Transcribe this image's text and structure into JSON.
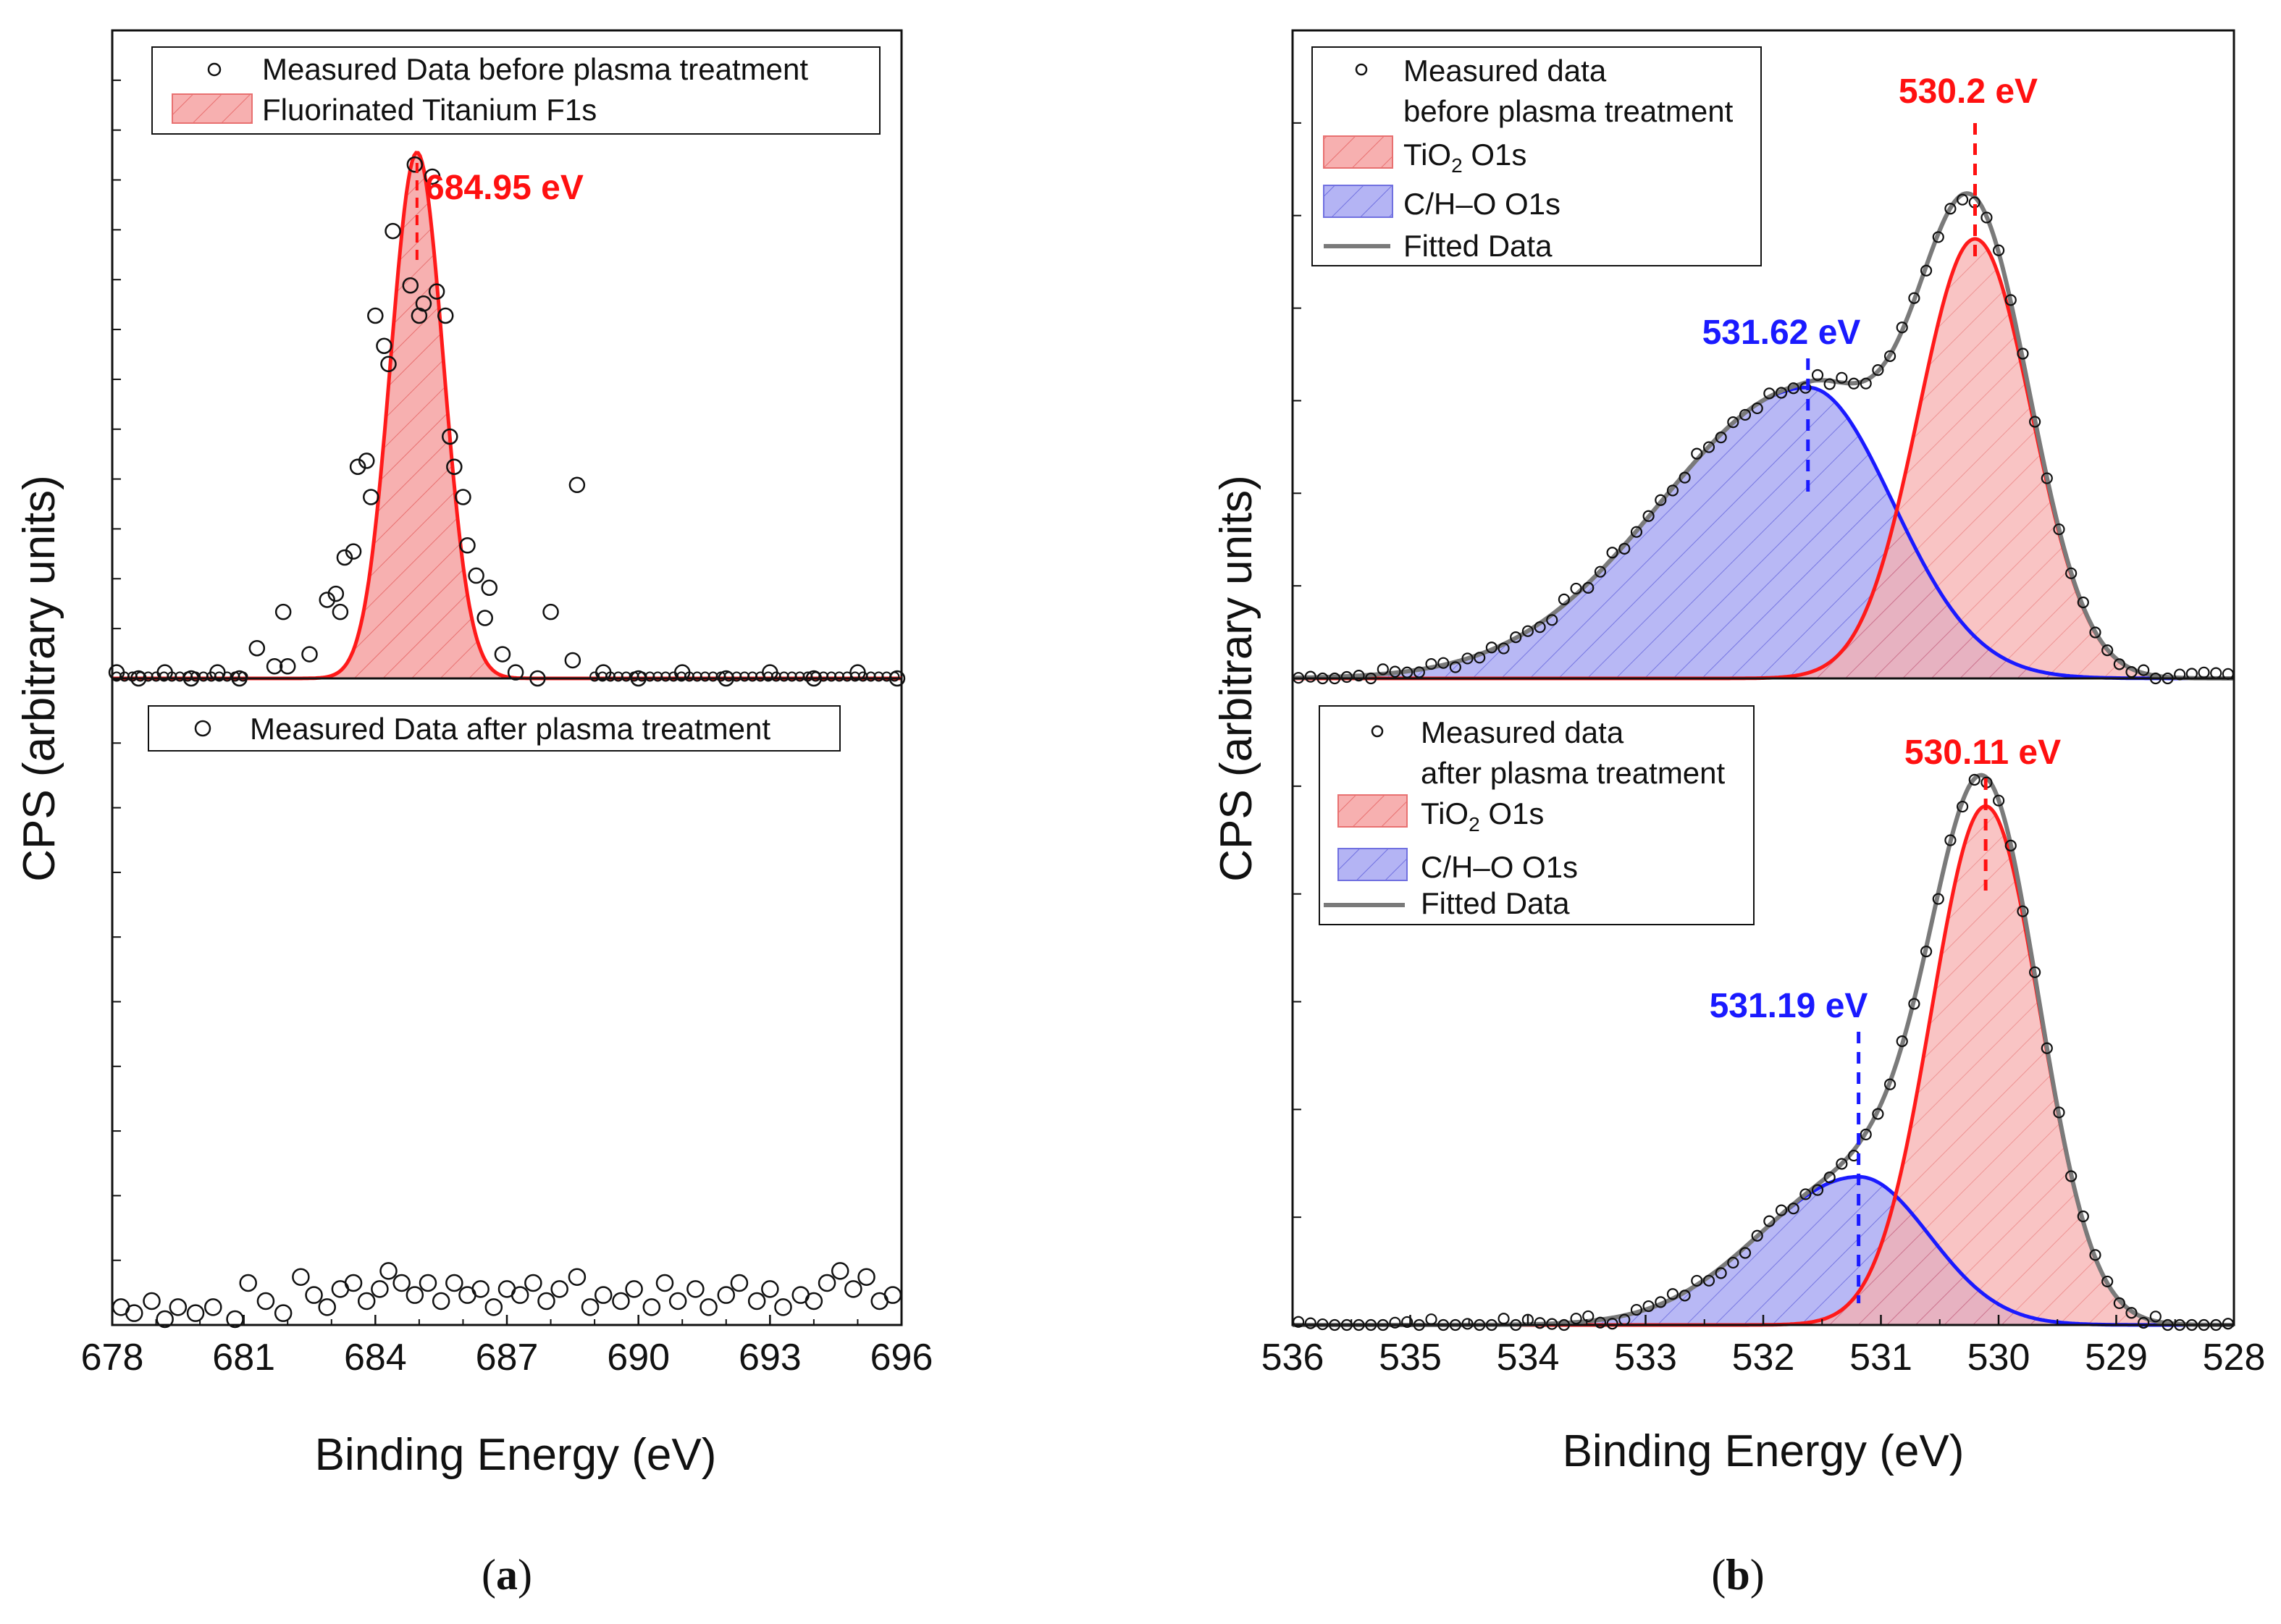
{
  "colors": {
    "red": "#ff1a1a",
    "blue": "#1a1aff",
    "gray": "#7a7a7a",
    "red_fill": "#f7b0b0",
    "blue_fill": "#b4b4f4"
  },
  "chart_data": [
    {
      "id": "a",
      "type": "scatter",
      "sublabel": {
        "open": "(",
        "letter": "a",
        "close": ")"
      },
      "xlabel": "Binding Energy (eV)",
      "ylabel": "CPS (arbitrary units)",
      "xlim": [
        678,
        696
      ],
      "xticks": [
        "678",
        "681",
        "684",
        "687",
        "690",
        "693",
        "696"
      ],
      "panels": [
        {
          "position": "top",
          "legend": [
            "Measured Data before plasma treatment",
            "Fluorinated Titanium  F1s"
          ],
          "peak": {
            "center": 684.95,
            "label": "684.95 eV",
            "color": "red",
            "height": 0.87,
            "sigma": 0.6
          },
          "points": [
            [
              678.1,
              0.01
            ],
            [
              678.6,
              0.0
            ],
            [
              679.2,
              0.01
            ],
            [
              679.8,
              0.0
            ],
            [
              680.4,
              0.01
            ],
            [
              680.9,
              0.0
            ],
            [
              681.3,
              0.05
            ],
            [
              681.7,
              0.02
            ],
            [
              681.9,
              0.11
            ],
            [
              682.0,
              0.02
            ],
            [
              682.5,
              0.04
            ],
            [
              682.9,
              0.13
            ],
            [
              683.1,
              0.14
            ],
            [
              683.2,
              0.11
            ],
            [
              683.3,
              0.2
            ],
            [
              683.5,
              0.21
            ],
            [
              683.6,
              0.35
            ],
            [
              683.8,
              0.36
            ],
            [
              683.9,
              0.3
            ],
            [
              684.0,
              0.6
            ],
            [
              684.2,
              0.55
            ],
            [
              684.3,
              0.52
            ],
            [
              684.4,
              0.74
            ],
            [
              684.6,
              0.95
            ],
            [
              684.7,
              0.97
            ],
            [
              684.8,
              0.65
            ],
            [
              684.9,
              0.85
            ],
            [
              685.0,
              0.6
            ],
            [
              685.1,
              0.62
            ],
            [
              685.3,
              0.83
            ],
            [
              685.4,
              0.64
            ],
            [
              685.6,
              0.6
            ],
            [
              685.7,
              0.4
            ],
            [
              685.8,
              0.35
            ],
            [
              686.0,
              0.3
            ],
            [
              686.1,
              0.22
            ],
            [
              686.3,
              0.17
            ],
            [
              686.5,
              0.1
            ],
            [
              686.6,
              0.15
            ],
            [
              686.9,
              0.04
            ],
            [
              687.2,
              0.01
            ],
            [
              687.7,
              0.0
            ],
            [
              688.0,
              0.11
            ],
            [
              688.5,
              0.03
            ],
            [
              688.6,
              0.32
            ],
            [
              689.2,
              0.01
            ],
            [
              690.0,
              0.0
            ],
            [
              691.0,
              0.01
            ],
            [
              692.0,
              0.0
            ],
            [
              693.0,
              0.01
            ],
            [
              694.0,
              0.0
            ],
            [
              695.0,
              0.01
            ],
            [
              695.9,
              0.0
            ]
          ]
        },
        {
          "position": "bottom",
          "legend": [
            "Measured Data after plasma treatment"
          ],
          "points": [
            [
              678.2,
              0.02
            ],
            [
              678.5,
              0.01
            ],
            [
              678.9,
              0.03
            ],
            [
              679.2,
              0.0
            ],
            [
              679.5,
              0.02
            ],
            [
              679.9,
              0.01
            ],
            [
              680.3,
              0.02
            ],
            [
              680.8,
              0.0
            ],
            [
              681.1,
              0.06
            ],
            [
              681.5,
              0.03
            ],
            [
              681.9,
              0.01
            ],
            [
              682.3,
              0.07
            ],
            [
              682.6,
              0.04
            ],
            [
              682.9,
              0.02
            ],
            [
              683.2,
              0.05
            ],
            [
              683.5,
              0.06
            ],
            [
              683.8,
              0.03
            ],
            [
              684.1,
              0.05
            ],
            [
              684.3,
              0.08
            ],
            [
              684.6,
              0.06
            ],
            [
              684.9,
              0.04
            ],
            [
              685.2,
              0.06
            ],
            [
              685.5,
              0.03
            ],
            [
              685.8,
              0.06
            ],
            [
              686.1,
              0.04
            ],
            [
              686.4,
              0.05
            ],
            [
              686.7,
              0.02
            ],
            [
              687.0,
              0.05
            ],
            [
              687.3,
              0.04
            ],
            [
              687.6,
              0.06
            ],
            [
              687.9,
              0.03
            ],
            [
              688.2,
              0.05
            ],
            [
              688.6,
              0.07
            ],
            [
              688.9,
              0.02
            ],
            [
              689.2,
              0.04
            ],
            [
              689.6,
              0.03
            ],
            [
              689.9,
              0.05
            ],
            [
              690.3,
              0.02
            ],
            [
              690.6,
              0.06
            ],
            [
              690.9,
              0.03
            ],
            [
              691.3,
              0.05
            ],
            [
              691.6,
              0.02
            ],
            [
              692.0,
              0.04
            ],
            [
              692.3,
              0.06
            ],
            [
              692.7,
              0.03
            ],
            [
              693.0,
              0.05
            ],
            [
              693.3,
              0.02
            ],
            [
              693.7,
              0.04
            ],
            [
              694.0,
              0.03
            ],
            [
              694.3,
              0.06
            ],
            [
              694.6,
              0.08
            ],
            [
              694.9,
              0.05
            ],
            [
              695.2,
              0.07
            ],
            [
              695.5,
              0.03
            ],
            [
              695.8,
              0.04
            ]
          ]
        }
      ]
    },
    {
      "id": "b",
      "type": "line",
      "sublabel": {
        "open": "(",
        "letter": "b",
        "close": ")"
      },
      "xlabel": "Binding Energy (eV)",
      "ylabel": "CPS (arbitrary units)",
      "xlim": [
        536,
        528
      ],
      "xticks": [
        "536",
        "535",
        "534",
        "533",
        "532",
        "531",
        "530",
        "529",
        "528"
      ],
      "panels": [
        {
          "position": "top",
          "legend": {
            "measured": [
              "Measured data",
              "before plasma treatment"
            ],
            "tio2": {
              "main": "TiO",
              "sub": "2",
              "rest": "  O1s"
            },
            "ch": "C/H–O  O1s",
            "fit": "Fitted Data"
          },
          "red_peak": {
            "center": 530.2,
            "label": "530.2 eV",
            "height": 0.71,
            "sigma": 0.48
          },
          "blue_peak": {
            "center": 531.62,
            "label": "531.62 eV",
            "height": 0.47,
            "sigma_low": 0.72,
            "sigma_high": 1.25
          },
          "points_count": 78
        },
        {
          "position": "bottom",
          "legend": {
            "measured": [
              "Measured data",
              "after plasma treatment"
            ],
            "tio2": {
              "main": "TiO",
              "sub": "2",
              "rest": "  O1s"
            },
            "ch": "C/H–O  O1s",
            "fit": "Fitted Data"
          },
          "red_peak": {
            "center": 530.11,
            "label": "530.11 eV",
            "height": 0.84,
            "sigma": 0.46
          },
          "blue_peak": {
            "center": 531.19,
            "label": "531.19 eV",
            "height": 0.24,
            "sigma_low": 0.6,
            "sigma_high": 0.85
          },
          "points_count": 78
        }
      ]
    }
  ]
}
